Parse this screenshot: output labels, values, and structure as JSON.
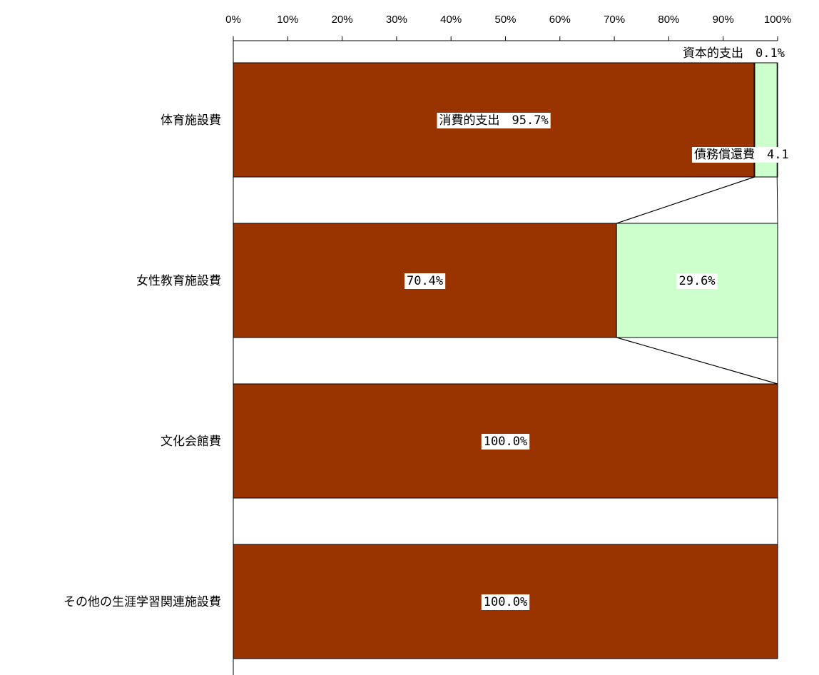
{
  "chart_data": {
    "type": "bar",
    "orientation": "horizontal",
    "stacked": true,
    "percent_axis": true,
    "xlim": [
      0,
      100
    ],
    "x_ticks": [
      "0%",
      "10%",
      "20%",
      "30%",
      "40%",
      "50%",
      "60%",
      "70%",
      "80%",
      "90%",
      "100%"
    ],
    "categories": [
      "体育施設費",
      "女性教育施設費",
      "文化会館費",
      "その他の生涯学習関連施設費"
    ],
    "series": [
      {
        "name": "消費的支出",
        "color": "#993300",
        "values": [
          95.7,
          70.4,
          100.0,
          100.0
        ]
      },
      {
        "name": "債務償還費",
        "color": "#CCFFCC",
        "values": [
          4.1,
          29.6,
          0,
          0
        ]
      },
      {
        "name": "資本的支出",
        "color": "#FF99CC",
        "values": [
          0.1,
          0,
          0,
          0
        ]
      }
    ],
    "data_labels": [
      {
        "category": "体育施設費",
        "series": "消費的支出",
        "text": "消費的支出　95.7%"
      },
      {
        "category": "体育施設費",
        "series": "資本的支出",
        "text": "資本的支出　0.1%"
      },
      {
        "category": "体育施設費",
        "series": "債務償還費",
        "text": "債務償還費　4.1"
      },
      {
        "category": "女性教育施設費",
        "series": "消費的支出",
        "text": "70.4%"
      },
      {
        "category": "女性教育施設費",
        "series": "債務償還費",
        "text": "29.6%"
      },
      {
        "category": "文化会館費",
        "series": "消費的支出",
        "text": "100.0%"
      },
      {
        "category": "その他の生涯学習関連施設費",
        "series": "消費的支出",
        "text": "100.0%"
      }
    ],
    "series_lines": true,
    "grid": false,
    "legend": "none"
  }
}
